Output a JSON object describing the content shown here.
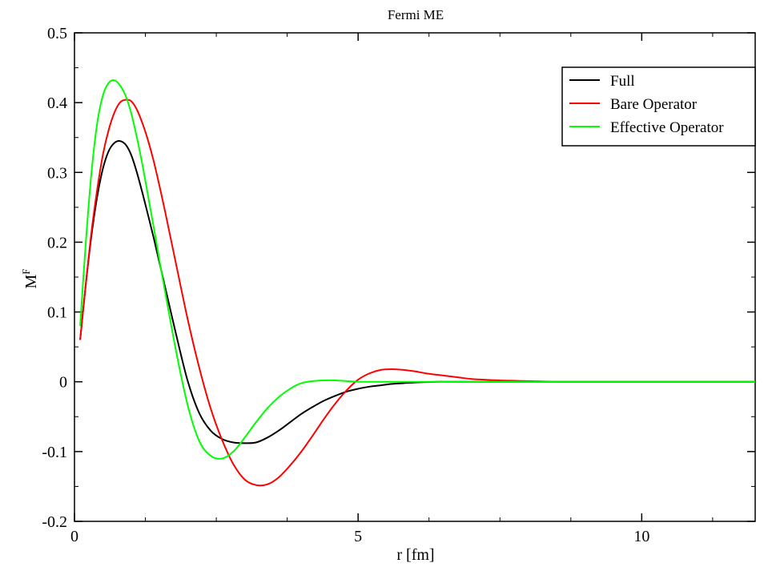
{
  "chart_data": {
    "type": "line",
    "title": "Fermi ME",
    "xlabel": "r [fm]",
    "ylabel_main": "M",
    "ylabel_sup": "F",
    "xlim": [
      0,
      12
    ],
    "ylim": [
      -0.2,
      0.5
    ],
    "x_major_ticks": [
      0,
      5,
      10
    ],
    "x_tick_labels": [
      "0",
      "5",
      "10"
    ],
    "x_minor_step": 1.25,
    "y_major_ticks": [
      -0.2,
      -0.1,
      0,
      0.1,
      0.2,
      0.3,
      0.4,
      0.5
    ],
    "y_tick_labels": [
      "-0.2",
      "-0.1",
      "0",
      "0.1",
      "0.2",
      "0.3",
      "0.4",
      "0.5"
    ],
    "y_minor_step": 0.05,
    "grid": false,
    "legend_position": "top-right",
    "x": [
      0.1,
      0.2,
      0.3,
      0.4,
      0.5,
      0.6,
      0.7,
      0.8,
      0.9,
      1.0,
      1.1,
      1.2,
      1.3,
      1.4,
      1.5,
      1.6,
      1.8,
      2.0,
      2.2,
      2.4,
      2.6,
      2.8,
      3.0,
      3.2,
      3.4,
      3.6,
      3.8,
      4.0,
      4.2,
      4.4,
      4.6,
      4.8,
      5.0,
      5.2,
      5.4,
      5.6,
      5.8,
      6.0,
      6.2,
      6.4,
      6.6,
      6.8,
      7.0,
      7.5,
      8.0,
      8.5,
      9.0,
      9.5,
      10.0,
      11.0,
      12.0
    ],
    "series": [
      {
        "name": "Full",
        "color": "#000000",
        "values": [
          0.06,
          0.14,
          0.21,
          0.265,
          0.305,
          0.33,
          0.342,
          0.345,
          0.34,
          0.325,
          0.3,
          0.27,
          0.238,
          0.205,
          0.17,
          0.135,
          0.065,
          0.0,
          -0.045,
          -0.07,
          -0.082,
          -0.087,
          -0.088,
          -0.087,
          -0.08,
          -0.07,
          -0.058,
          -0.046,
          -0.036,
          -0.027,
          -0.02,
          -0.014,
          -0.01,
          -0.007,
          -0.005,
          -0.003,
          -0.002,
          -0.001,
          -0.0005,
          0.0,
          0.0,
          0.0,
          0.0,
          0.0,
          0.0,
          0.0,
          0.0,
          0.0,
          0.0,
          0.0,
          0.0
        ]
      },
      {
        "name": "Bare Operator",
        "color": "#ff0000",
        "values": [
          0.06,
          0.14,
          0.215,
          0.275,
          0.325,
          0.36,
          0.385,
          0.4,
          0.404,
          0.402,
          0.39,
          0.37,
          0.345,
          0.315,
          0.28,
          0.243,
          0.165,
          0.088,
          0.02,
          -0.038,
          -0.083,
          -0.118,
          -0.14,
          -0.148,
          -0.147,
          -0.137,
          -0.12,
          -0.1,
          -0.077,
          -0.053,
          -0.031,
          -0.012,
          0.003,
          0.012,
          0.017,
          0.018,
          0.017,
          0.015,
          0.012,
          0.01,
          0.008,
          0.006,
          0.004,
          0.002,
          0.001,
          0.0,
          0.0,
          0.0,
          0.0,
          0.0,
          0.0
        ]
      },
      {
        "name": "Effective Operator",
        "color": "#00ff00",
        "values": [
          0.08,
          0.2,
          0.3,
          0.37,
          0.41,
          0.428,
          0.432,
          0.425,
          0.41,
          0.385,
          0.35,
          0.31,
          0.265,
          0.22,
          0.173,
          0.128,
          0.04,
          -0.035,
          -0.085,
          -0.106,
          -0.11,
          -0.1,
          -0.08,
          -0.058,
          -0.038,
          -0.022,
          -0.01,
          -0.002,
          0.001,
          0.002,
          0.002,
          0.001,
          0.0,
          0.0,
          0.0,
          0.0,
          0.0,
          0.0,
          0.0,
          0.0,
          0.0,
          0.0,
          0.0,
          0.0,
          0.0,
          0.0,
          0.0,
          0.0,
          0.0,
          0.0,
          0.0
        ]
      }
    ]
  }
}
